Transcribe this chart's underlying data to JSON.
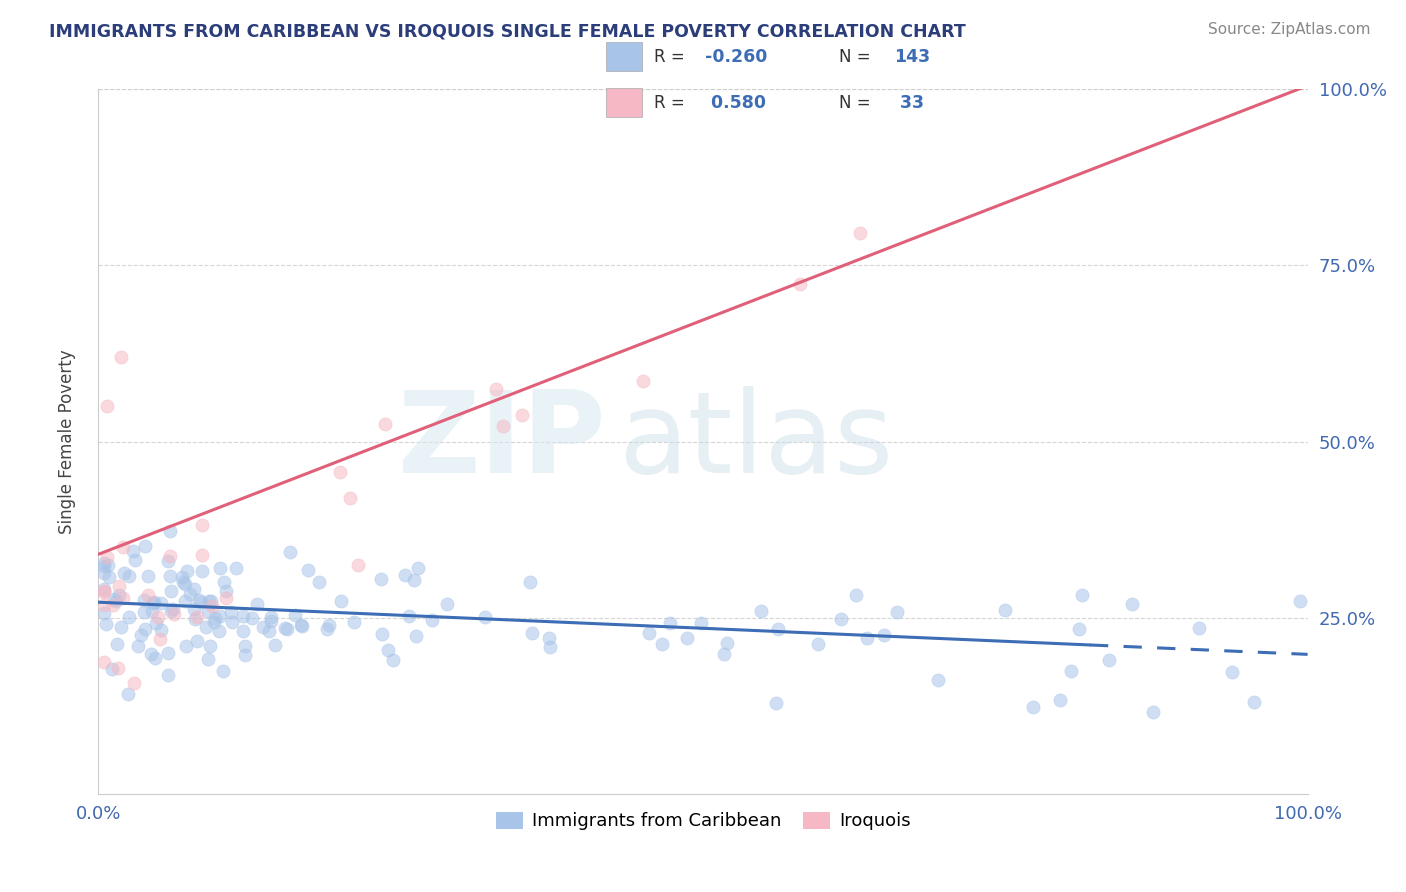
{
  "title": "IMMIGRANTS FROM CARIBBEAN VS IROQUOIS SINGLE FEMALE POVERTY CORRELATION CHART",
  "source": "Source: ZipAtlas.com",
  "ylabel": "Single Female Poverty",
  "xlim": [
    0,
    1
  ],
  "ylim": [
    0,
    1
  ],
  "xticklabels": [
    "0.0%",
    "100.0%"
  ],
  "yticklabels_right": [
    "100.0%",
    "75.0%",
    "50.0%",
    "25.0%"
  ],
  "ytick_positions_right": [
    1.0,
    0.75,
    0.5,
    0.25
  ],
  "legend_labels": [
    "Immigrants from Caribbean",
    "Iroquois"
  ],
  "blue_color": "#a8c4e8",
  "pink_color": "#f5b8c4",
  "blue_line_color": "#3d6db5",
  "pink_line_color": "#e0607a",
  "blue_R": -0.26,
  "blue_N": 143,
  "pink_R": 0.58,
  "pink_N": 33,
  "watermark_zip": "ZIP",
  "watermark_atlas": "atlas",
  "background_color": "#ffffff",
  "grid_color": "#cccccc",
  "title_color": "#2c3e7a",
  "axis_tick_color": "#4169b0",
  "blue_line_solid_end": 0.82,
  "pink_line_y0": 0.34,
  "pink_line_y1": 1.005,
  "blue_line_y0": 0.272,
  "blue_line_y1": 0.198
}
